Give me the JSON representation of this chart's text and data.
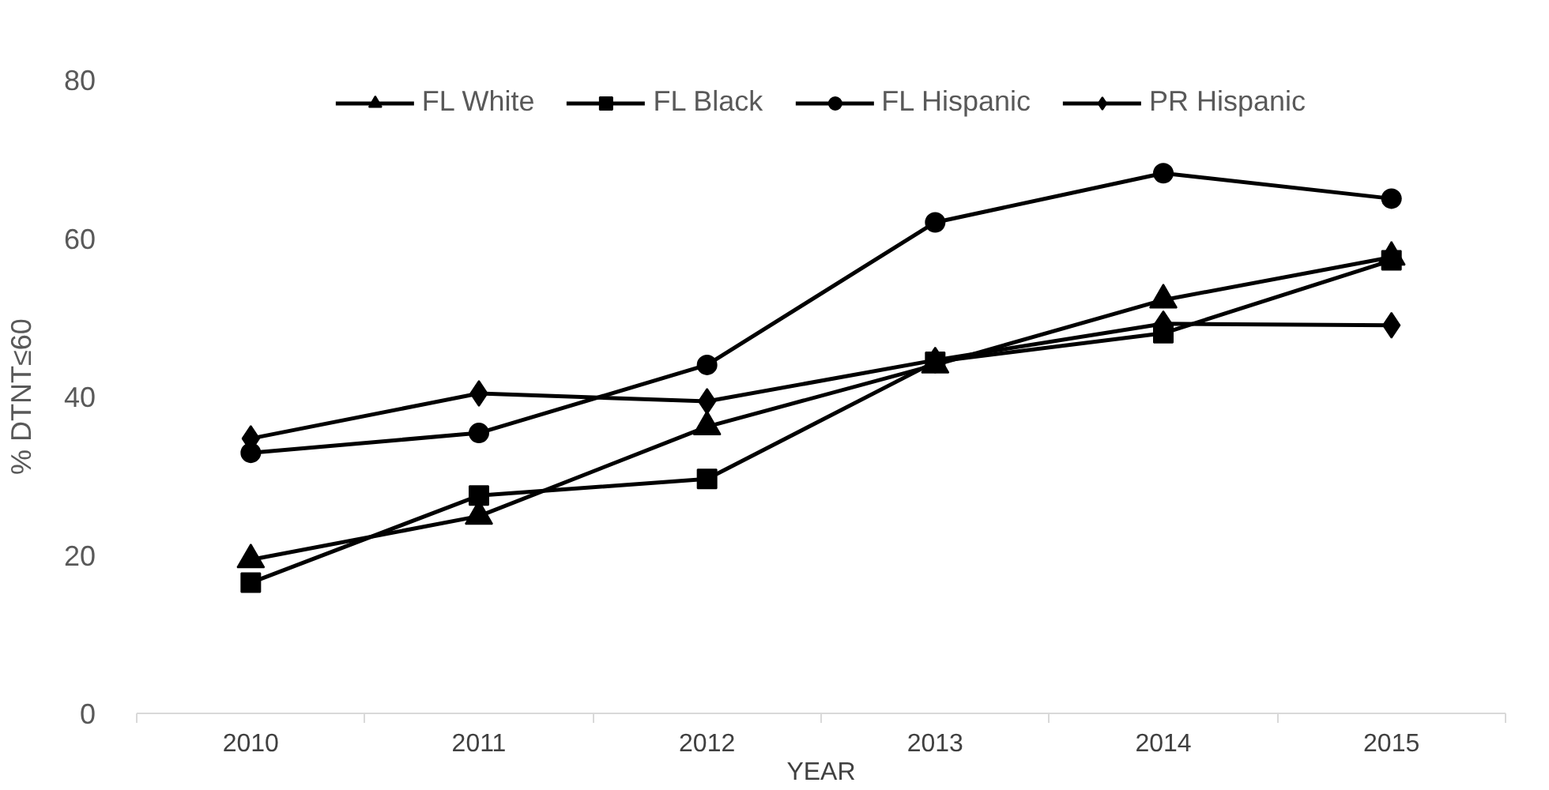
{
  "chart_data": {
    "type": "line",
    "xlabel": "YEAR",
    "ylabel": "% DTNT≤60",
    "categories": [
      "2010",
      "2011",
      "2012",
      "2013",
      "2014",
      "2015"
    ],
    "series": [
      {
        "name": "FL White",
        "color": "#000000",
        "marker": "triangle",
        "values": [
          19.4,
          24.9,
          36.2,
          44.0,
          52.2,
          57.6
        ]
      },
      {
        "name": "FL Black",
        "color": "#000000",
        "marker": "square",
        "values": [
          16.5,
          27.5,
          29.6,
          44.4,
          48.0,
          57.2
        ]
      },
      {
        "name": "FL Hispanic",
        "color": "#000000",
        "marker": "circle",
        "values": [
          32.9,
          35.4,
          44.0,
          62.0,
          68.2,
          65.0
        ]
      },
      {
        "name": "PR Hispanic",
        "color": "#000000",
        "marker": "diamond",
        "values": [
          34.7,
          40.4,
          39.4,
          44.6,
          49.2,
          49.0
        ]
      }
    ],
    "ylim": [
      0,
      80
    ],
    "yticks": [
      0,
      20,
      40,
      60,
      80
    ],
    "grid": false,
    "legend": "top",
    "line_style": "solid"
  }
}
